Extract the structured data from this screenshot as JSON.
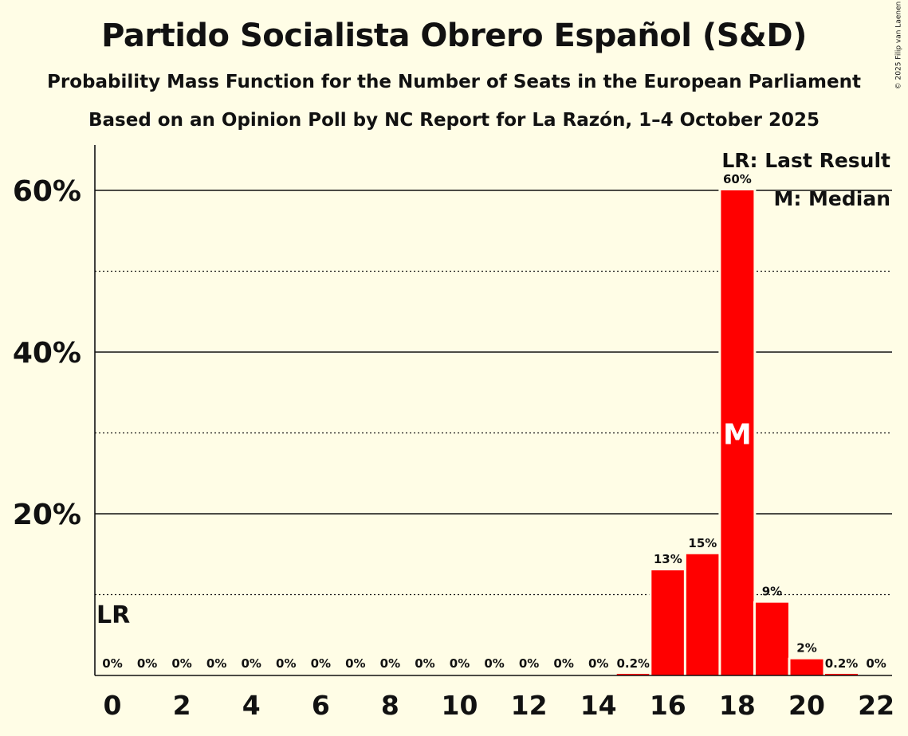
{
  "title": "Partido Socialista Obrero Español (S&D)",
  "subtitle": "Probability Mass Function for the Number of Seats in the European Parliament",
  "subtitle2": "Based on an Opinion Poll by NC Report for La Razón, 1–4 October 2025",
  "copyright": "© 2025 Filip van Laenen",
  "legend": {
    "last_result": "LR: Last Result",
    "median": "M: Median"
  },
  "markers": {
    "last_result_label": "LR",
    "median_label": "M"
  },
  "colors": {
    "bar": "#ff0000",
    "background": "#fffde6",
    "text": "#111111"
  },
  "chart_data": {
    "type": "bar",
    "x": [
      0,
      1,
      2,
      3,
      4,
      5,
      6,
      7,
      8,
      9,
      10,
      11,
      12,
      13,
      14,
      15,
      16,
      17,
      18,
      19,
      20,
      21,
      22
    ],
    "values": [
      0,
      0,
      0,
      0,
      0,
      0,
      0,
      0,
      0,
      0,
      0,
      0,
      0,
      0,
      0,
      0.2,
      13,
      15,
      60,
      9,
      2,
      0.2,
      0
    ],
    "data_labels": [
      "0%",
      "0%",
      "0%",
      "0%",
      "0%",
      "0%",
      "0%",
      "0%",
      "0%",
      "0%",
      "0%",
      "0%",
      "0%",
      "0%",
      "0%",
      "0.2%",
      "13%",
      "15%",
      "60%",
      "9%",
      "2%",
      "0.2%",
      "0%"
    ],
    "x_tick_labels": [
      "0",
      "2",
      "4",
      "6",
      "8",
      "10",
      "12",
      "14",
      "16",
      "18",
      "20",
      "22"
    ],
    "y_tick_labels": [
      "20%",
      "40%",
      "60%"
    ],
    "ylim": [
      0,
      65
    ],
    "last_result_seat": 0,
    "median_seat": 18,
    "grid": true,
    "legend_position": "top-right"
  }
}
